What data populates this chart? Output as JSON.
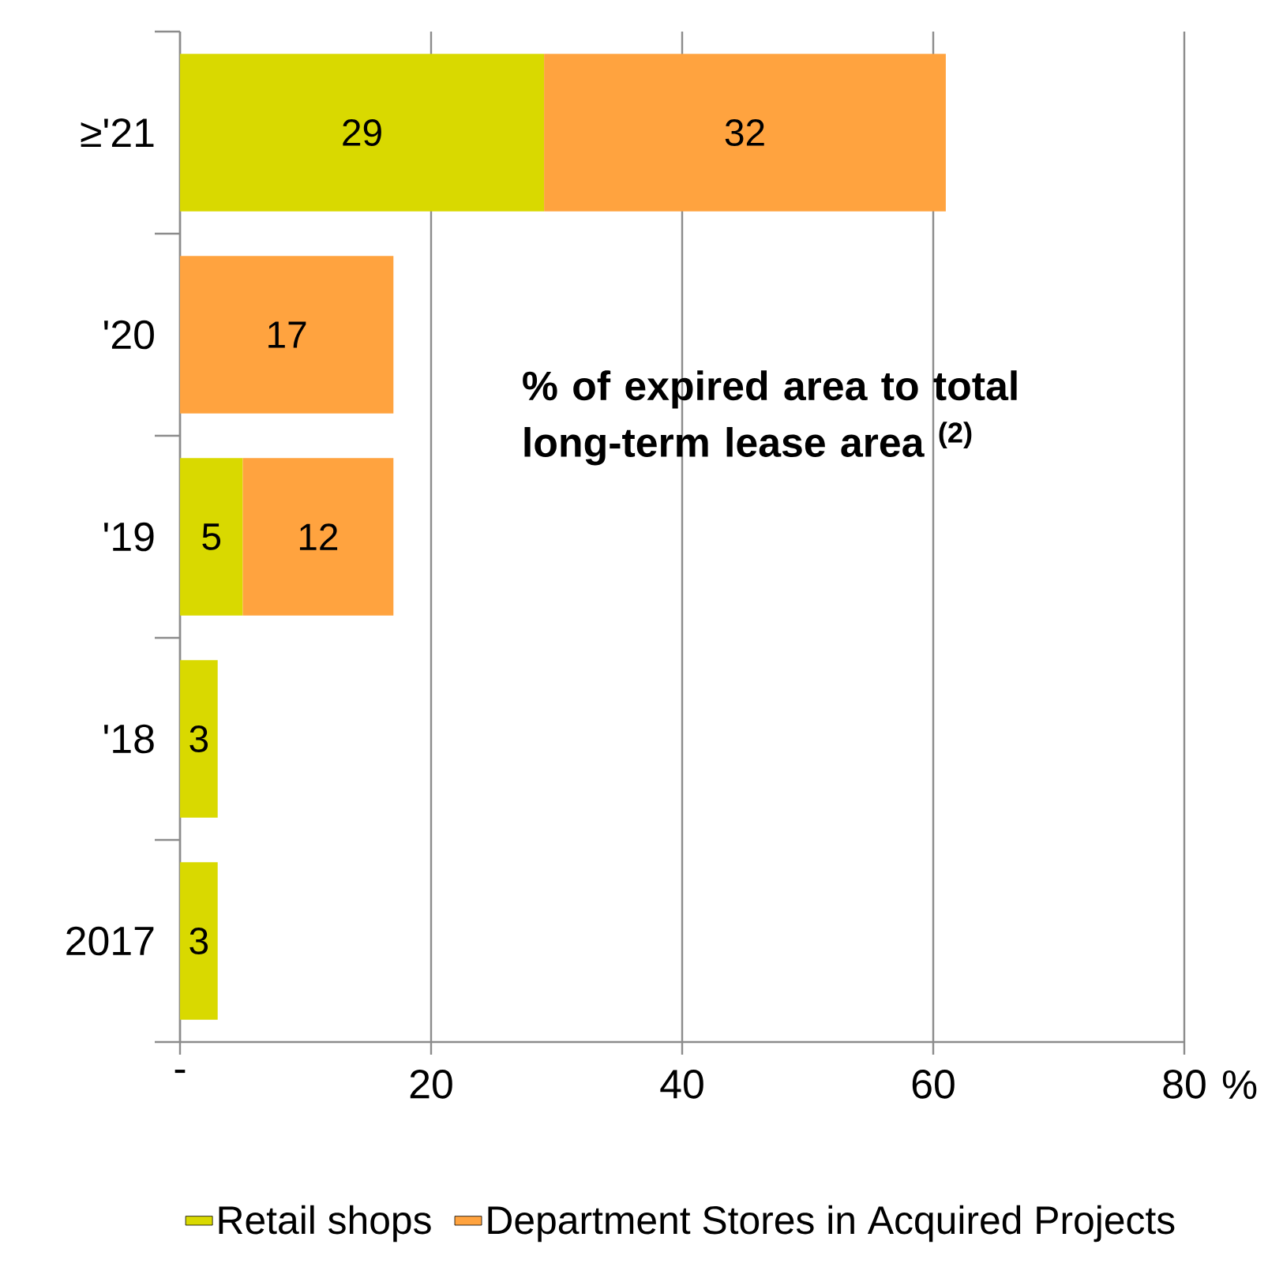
{
  "chart_data": {
    "type": "bar",
    "orientation": "horizontal",
    "stacked": true,
    "categories": [
      "≥'21",
      "'20",
      "'19",
      "'18",
      "2017"
    ],
    "series": [
      {
        "name": "Retail shops",
        "color": "#d9d900",
        "values": [
          29,
          null,
          5,
          3,
          3
        ]
      },
      {
        "name": "Department Stores in Acquired Projects",
        "color": "#ffa33f",
        "values": [
          32,
          17,
          12,
          null,
          null
        ]
      }
    ],
    "xlim": [
      0,
      80
    ],
    "xticks": [
      {
        "value": 0,
        "label": "-"
      },
      20,
      40,
      60,
      80
    ],
    "xlabel": "%",
    "annotations": [
      "% of expired area to total long-term lease area $^{(2)}$"
    ],
    "data_labels": true,
    "grid": "x",
    "legend": "bottom"
  }
}
